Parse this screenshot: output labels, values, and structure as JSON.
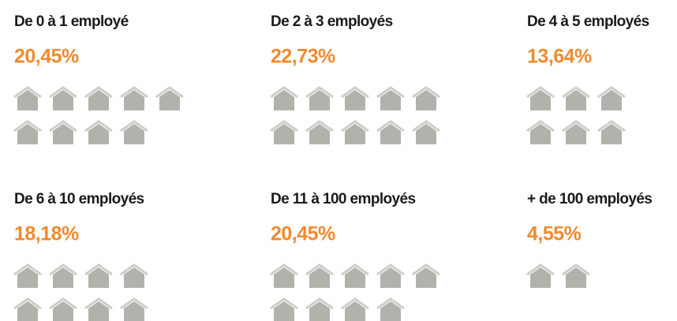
{
  "chart_data": {
    "type": "pictogram",
    "categories": [
      "De 0 à 1 employé",
      "De 2 à 3 employés",
      "De 4 à 5 employés",
      "De 6 à 10 employés",
      "De 11 à 100 employés",
      "+ de 100 employés"
    ],
    "values": [
      20.45,
      22.73,
      13.64,
      18.18,
      20.45,
      4.55
    ],
    "value_labels": [
      "20,45%",
      "22,73%",
      "13,64%",
      "18,18%",
      "20,45%",
      "4,55%"
    ],
    "counts": [
      9,
      10,
      6,
      8,
      9,
      2
    ],
    "color": "#f08a2e",
    "icon_color": "#b3b1ac"
  }
}
